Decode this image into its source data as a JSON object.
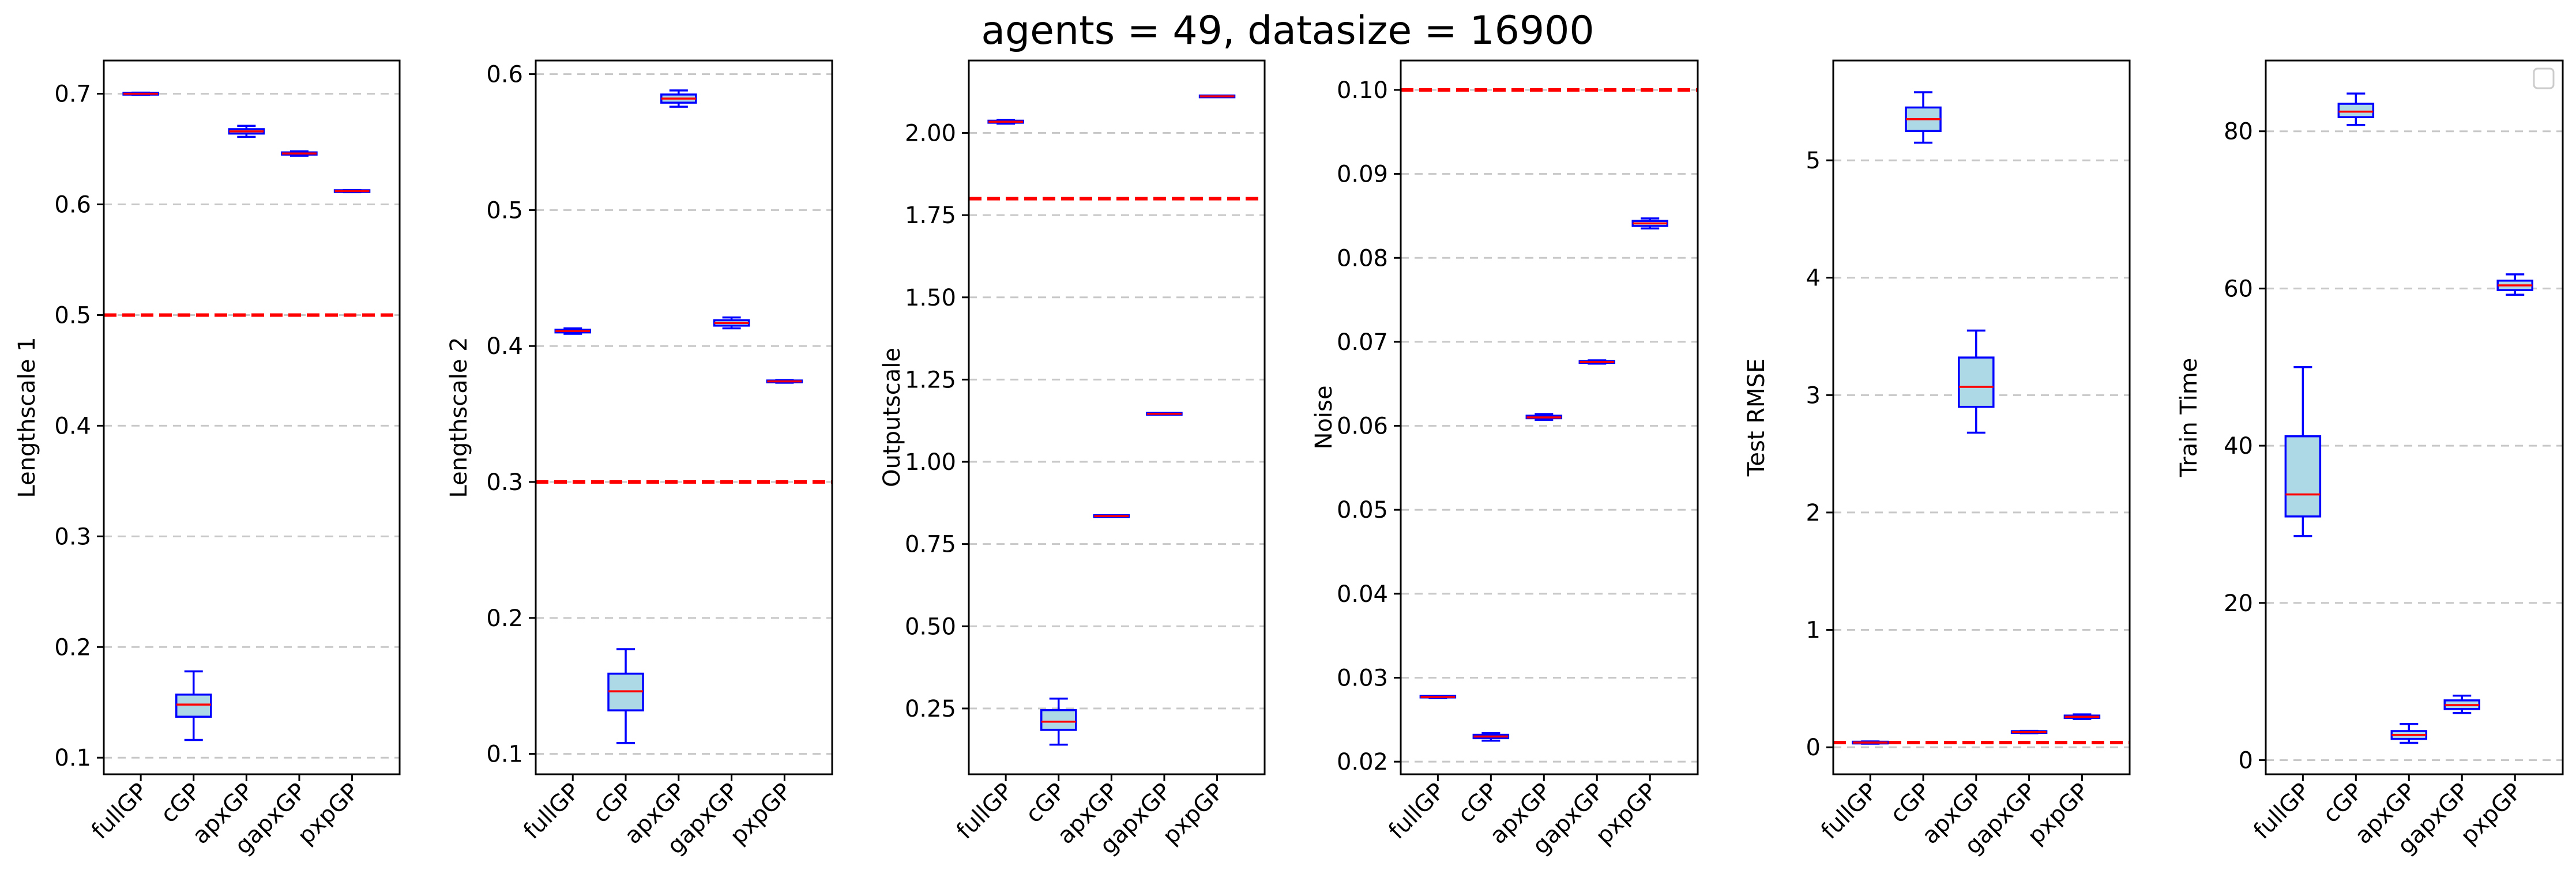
{
  "figure": {
    "title": "agents = 49, datasize = 16900"
  },
  "colors": {
    "box_fill": "#add8e6",
    "box_edge": "#0000ff",
    "median": "#ff0000",
    "reference_line": "#ff0000",
    "grid": "#c8c8c8"
  },
  "chart_data": [
    {
      "type": "box",
      "ylabel": "Lengthscale 1",
      "categories": [
        "fullGP",
        "cGP",
        "apxGP",
        "gapxGP",
        "pxpGP"
      ],
      "ylim": [
        0.085,
        0.73
      ],
      "yticks": [
        0.1,
        0.2,
        0.3,
        0.4,
        0.5,
        0.6,
        0.7
      ],
      "ytick_labels": [
        "0.1",
        "0.2",
        "0.3",
        "0.4",
        "0.5",
        "0.6",
        "0.7"
      ],
      "grid": "horizontal dashed",
      "reference_line": 0.5,
      "boxes": [
        {
          "whislo": 0.699,
          "q1": 0.6995,
          "med": 0.7,
          "q3": 0.7005,
          "whishi": 0.701
        },
        {
          "whislo": 0.116,
          "q1": 0.137,
          "med": 0.148,
          "q3": 0.157,
          "whishi": 0.178
        },
        {
          "whislo": 0.661,
          "q1": 0.664,
          "med": 0.666,
          "q3": 0.668,
          "whishi": 0.671
        },
        {
          "whislo": 0.644,
          "q1": 0.645,
          "med": 0.646,
          "q3": 0.647,
          "whishi": 0.648
        },
        {
          "whislo": 0.611,
          "q1": 0.6115,
          "med": 0.612,
          "q3": 0.6125,
          "whishi": 0.613
        }
      ]
    },
    {
      "type": "box",
      "ylabel": "Lengthscale 2",
      "categories": [
        "fullGP",
        "cGP",
        "apxGP",
        "gapxGP",
        "pxpGP"
      ],
      "ylim": [
        0.085,
        0.61
      ],
      "yticks": [
        0.1,
        0.2,
        0.3,
        0.4,
        0.5,
        0.6
      ],
      "ytick_labels": [
        "0.1",
        "0.2",
        "0.3",
        "0.4",
        "0.5",
        "0.6"
      ],
      "grid": "horizontal dashed",
      "reference_line": 0.3,
      "boxes": [
        {
          "whislo": 0.409,
          "q1": 0.41,
          "med": 0.411,
          "q3": 0.412,
          "whishi": 0.413
        },
        {
          "whislo": 0.108,
          "q1": 0.132,
          "med": 0.146,
          "q3": 0.159,
          "whishi": 0.177
        },
        {
          "whislo": 0.576,
          "q1": 0.579,
          "med": 0.582,
          "q3": 0.585,
          "whishi": 0.588
        },
        {
          "whislo": 0.413,
          "q1": 0.415,
          "med": 0.417,
          "q3": 0.419,
          "whishi": 0.421
        },
        {
          "whislo": 0.373,
          "q1": 0.3735,
          "med": 0.374,
          "q3": 0.3745,
          "whishi": 0.375
        }
      ]
    },
    {
      "type": "box",
      "ylabel": "Outputscale",
      "categories": [
        "fullGP",
        "cGP",
        "apxGP",
        "gapxGP",
        "pxpGP"
      ],
      "ylim": [
        0.05,
        2.22
      ],
      "yticks": [
        0.25,
        0.5,
        0.75,
        1.0,
        1.25,
        1.5,
        1.75,
        2.0
      ],
      "ytick_labels": [
        "0.25",
        "0.50",
        "0.75",
        "1.00",
        "1.25",
        "1.50",
        "1.75",
        "2.00"
      ],
      "grid": "horizontal dashed",
      "reference_line": 1.8,
      "boxes": [
        {
          "whislo": 2.028,
          "q1": 2.031,
          "med": 2.034,
          "q3": 2.037,
          "whishi": 2.04
        },
        {
          "whislo": 0.14,
          "q1": 0.185,
          "med": 0.21,
          "q3": 0.245,
          "whishi": 0.28
        },
        {
          "whislo": 0.834,
          "q1": 0.834,
          "med": 0.835,
          "q3": 0.836,
          "whishi": 0.836
        },
        {
          "whislo": 1.145,
          "q1": 1.145,
          "med": 1.146,
          "q3": 1.147,
          "whishi": 1.147
        },
        {
          "whislo": 2.11,
          "q1": 2.11,
          "med": 2.111,
          "q3": 2.112,
          "whishi": 2.112
        }
      ]
    },
    {
      "type": "box",
      "ylabel": "Noise",
      "categories": [
        "fullGP",
        "cGP",
        "apxGP",
        "gapxGP",
        "pxpGP"
      ],
      "ylim": [
        0.0185,
        0.1035
      ],
      "yticks": [
        0.02,
        0.03,
        0.04,
        0.05,
        0.06,
        0.07,
        0.08,
        0.09,
        0.1
      ],
      "ytick_labels": [
        "0.02",
        "0.03",
        "0.04",
        "0.05",
        "0.06",
        "0.07",
        "0.08",
        "0.09",
        "0.10"
      ],
      "grid": "horizontal dashed",
      "reference_line": 0.1,
      "boxes": [
        {
          "whislo": 0.0276,
          "q1": 0.0277,
          "med": 0.0277,
          "q3": 0.0278,
          "whishi": 0.0278
        },
        {
          "whislo": 0.0225,
          "q1": 0.0228,
          "med": 0.023,
          "q3": 0.0232,
          "whishi": 0.0234
        },
        {
          "whislo": 0.0607,
          "q1": 0.0609,
          "med": 0.061,
          "q3": 0.0612,
          "whishi": 0.0614
        },
        {
          "whislo": 0.0674,
          "q1": 0.0675,
          "med": 0.0676,
          "q3": 0.0677,
          "whishi": 0.0678
        },
        {
          "whislo": 0.0835,
          "q1": 0.0838,
          "med": 0.0841,
          "q3": 0.0844,
          "whishi": 0.0847
        }
      ]
    },
    {
      "type": "box",
      "ylabel": "Test RMSE",
      "categories": [
        "fullGP",
        "cGP",
        "apxGP",
        "gapxGP",
        "pxpGP"
      ],
      "ylim": [
        -0.23,
        5.85
      ],
      "yticks": [
        0,
        1,
        2,
        3,
        4,
        5
      ],
      "ytick_labels": [
        "0",
        "1",
        "2",
        "3",
        "4",
        "5"
      ],
      "grid": "horizontal dashed",
      "reference_line": 0.04,
      "boxes": [
        {
          "whislo": 0.03,
          "q1": 0.035,
          "med": 0.04,
          "q3": 0.045,
          "whishi": 0.05
        },
        {
          "whislo": 5.15,
          "q1": 5.25,
          "med": 5.35,
          "q3": 5.45,
          "whishi": 5.58
        },
        {
          "whislo": 2.68,
          "q1": 2.9,
          "med": 3.07,
          "q3": 3.32,
          "whishi": 3.55
        },
        {
          "whislo": 0.12,
          "q1": 0.125,
          "med": 0.13,
          "q3": 0.135,
          "whishi": 0.14
        },
        {
          "whislo": 0.24,
          "q1": 0.25,
          "med": 0.26,
          "q3": 0.27,
          "whishi": 0.28
        }
      ]
    },
    {
      "type": "box",
      "ylabel": "Train Time",
      "categories": [
        "fullGP",
        "cGP",
        "apxGP",
        "gapxGP",
        "pxpGP"
      ],
      "ylim": [
        -1.8,
        89
      ],
      "yticks": [
        0,
        20,
        40,
        60,
        80
      ],
      "ytick_labels": [
        "0",
        "20",
        "40",
        "60",
        "80"
      ],
      "grid": "horizontal dashed",
      "legend": "top-right (empty)",
      "boxes": [
        {
          "whislo": 28.5,
          "q1": 31.0,
          "med": 33.8,
          "q3": 41.2,
          "whishi": 50.0
        },
        {
          "whislo": 80.8,
          "q1": 81.8,
          "med": 82.5,
          "q3": 83.5,
          "whishi": 84.8
        },
        {
          "whislo": 2.2,
          "q1": 2.7,
          "med": 3.2,
          "q3": 3.7,
          "whishi": 4.6
        },
        {
          "whislo": 6.0,
          "q1": 6.5,
          "med": 7.0,
          "q3": 7.6,
          "whishi": 8.2
        },
        {
          "whislo": 59.2,
          "q1": 59.8,
          "med": 60.4,
          "q3": 61.0,
          "whishi": 61.8
        }
      ]
    }
  ]
}
